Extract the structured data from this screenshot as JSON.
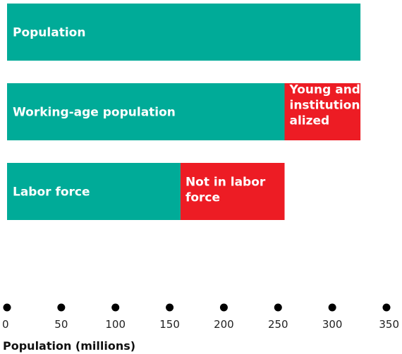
{
  "chart_data": {
    "type": "bar",
    "orientation": "horizontal",
    "stacked": true,
    "colors": {
      "primary": "#00ab98",
      "secondary": "#ed1c24",
      "axis_dots": "#000000"
    },
    "bars": [
      {
        "segments": [
          {
            "label": "Population",
            "value": 326,
            "color": "#00ab98"
          }
        ]
      },
      {
        "segments": [
          {
            "label": "Working-age population",
            "value": 256,
            "color": "#00ab98"
          },
          {
            "label": "Young and institution-alized",
            "value": 70,
            "color": "#ed1c24"
          }
        ]
      },
      {
        "segments": [
          {
            "label": "Labor force",
            "value": 160,
            "color": "#00ab98"
          },
          {
            "label": "Not in labor force",
            "value": 96,
            "color": "#ed1c24"
          }
        ]
      }
    ],
    "xlabel": "Population (millions)",
    "xlim": [
      0,
      350
    ],
    "xticks": [
      0,
      50,
      100,
      150,
      200,
      250,
      300,
      350
    ],
    "xtick_labels": [
      "0",
      "50",
      "100",
      "150",
      "200",
      "250",
      "300",
      "350"
    ],
    "grid": false,
    "axis_style": "dots"
  }
}
